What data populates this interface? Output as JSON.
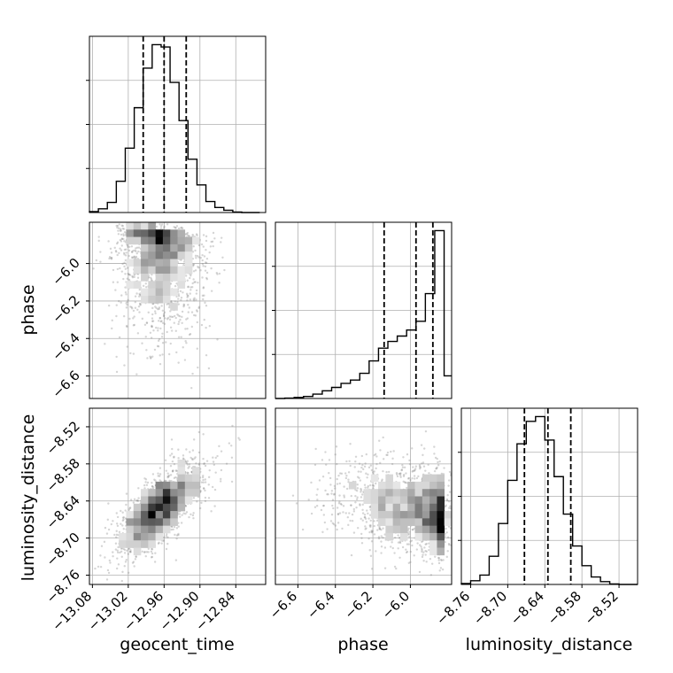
{
  "chart_data": {
    "type": "corner",
    "parameters": [
      "geocent_time",
      "phase",
      "luminosity_distance"
    ],
    "ticks": {
      "geocent_time": [
        "−13.08",
        "−13.02",
        "−12.96",
        "−12.90",
        "−12.84"
      ],
      "phase": [
        "−6.6",
        "−6.4",
        "−6.2",
        "−6.0"
      ],
      "luminosity_distance": [
        "−8.76",
        "−8.70",
        "−8.64",
        "−8.58",
        "−8.52"
      ]
    },
    "ranges": {
      "geocent_time": [
        -13.085,
        -12.79
      ],
      "phase": [
        -6.72,
        -5.78
      ],
      "luminosity_distance": [
        -8.775,
        -8.49
      ]
    },
    "quantiles": {
      "geocent_time": [
        -12.995,
        -12.96,
        -12.923
      ],
      "phase": [
        -6.14,
        -5.97,
        -5.88
      ],
      "luminosity_distance": [
        -8.673,
        -8.635,
        -8.598
      ]
    },
    "grid": true,
    "histograms": {
      "geocent_time": {
        "edges": [
          -13.085,
          -13.07,
          -13.055,
          -13.04,
          -13.025,
          -13.01,
          -12.995,
          -12.98,
          -12.965,
          -12.95,
          -12.935,
          -12.92,
          -12.905,
          -12.89,
          -12.875,
          -12.86,
          -12.845,
          -12.83,
          -12.815,
          -12.8
        ],
        "counts": [
          2,
          8,
          22,
          68,
          140,
          228,
          314,
          365,
          360,
          283,
          200,
          116,
          60,
          24,
          11,
          5,
          1,
          0,
          0
        ]
      },
      "phase": {
        "edges": [
          -6.72,
          -6.67,
          -6.62,
          -6.57,
          -6.52,
          -6.47,
          -6.42,
          -6.37,
          -6.32,
          -6.27,
          -6.22,
          -6.17,
          -6.12,
          -6.07,
          -6.02,
          -5.97,
          -5.92,
          -5.87,
          -5.82,
          -5.78
        ],
        "counts": [
          0,
          2,
          6,
          12,
          26,
          46,
          66,
          90,
          110,
          150,
          224,
          300,
          340,
          372,
          408,
          460,
          625,
          1000,
          135
        ]
      },
      "luminosity_distance": {
        "edges": [
          -8.775,
          -8.76,
          -8.745,
          -8.73,
          -8.715,
          -8.7,
          -8.685,
          -8.67,
          -8.655,
          -8.64,
          -8.625,
          -8.61,
          -8.595,
          -8.58,
          -8.565,
          -8.55,
          -8.535,
          -8.52,
          -8.505,
          -8.49
        ],
        "counts": [
          2,
          8,
          20,
          60,
          130,
          222,
          300,
          348,
          358,
          308,
          230,
          150,
          82,
          40,
          16,
          6,
          1,
          0,
          0
        ]
      }
    },
    "correlations": {
      "phase_vs_geocent_time": -0.2,
      "luminosity_distance_vs_geocent_time": 0.72,
      "luminosity_distance_vs_phase": -0.25
    }
  }
}
